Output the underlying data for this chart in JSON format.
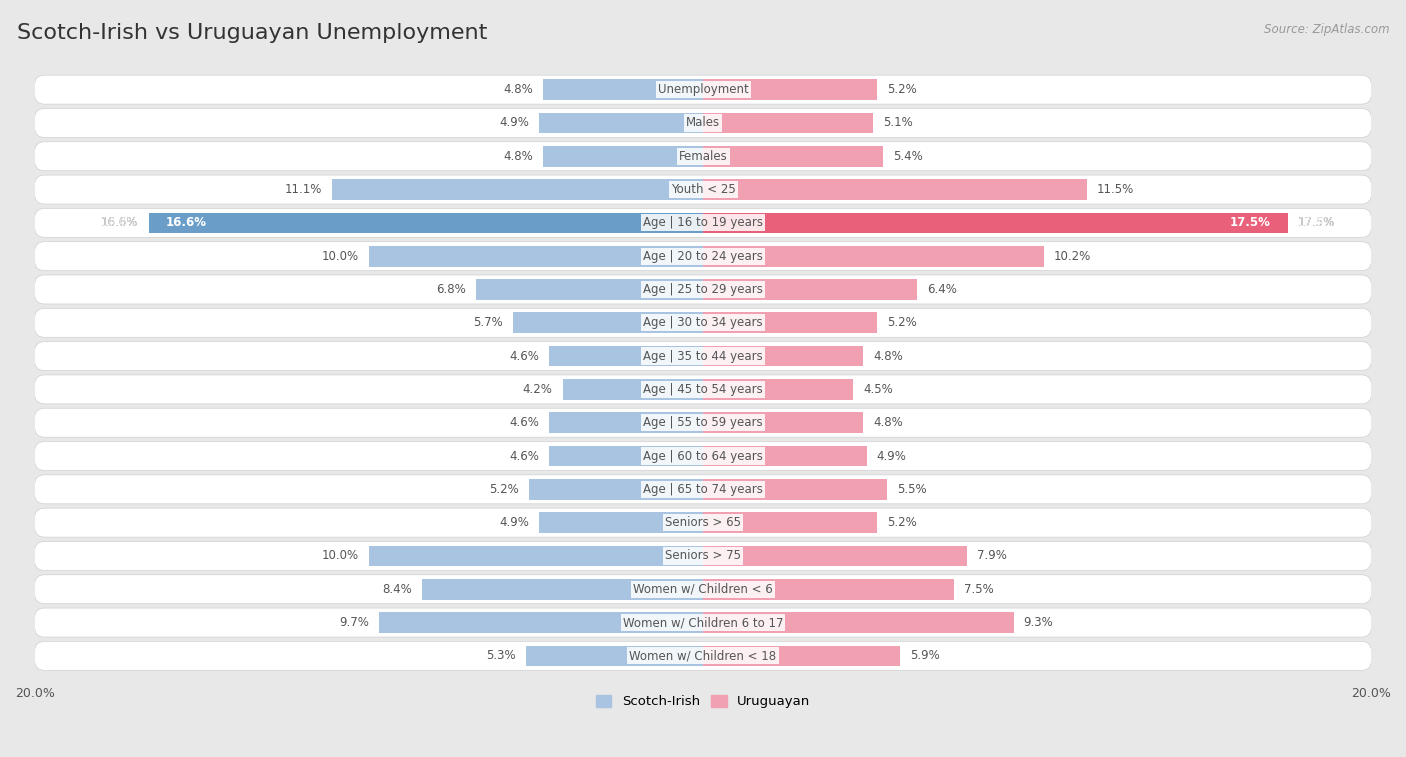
{
  "title": "Scotch-Irish vs Uruguayan Unemployment",
  "source": "Source: ZipAtlas.com",
  "categories": [
    "Unemployment",
    "Males",
    "Females",
    "Youth < 25",
    "Age | 16 to 19 years",
    "Age | 20 to 24 years",
    "Age | 25 to 29 years",
    "Age | 30 to 34 years",
    "Age | 35 to 44 years",
    "Age | 45 to 54 years",
    "Age | 55 to 59 years",
    "Age | 60 to 64 years",
    "Age | 65 to 74 years",
    "Seniors > 65",
    "Seniors > 75",
    "Women w/ Children < 6",
    "Women w/ Children 6 to 17",
    "Women w/ Children < 18"
  ],
  "scotch_irish": [
    4.8,
    4.9,
    4.8,
    11.1,
    16.6,
    10.0,
    6.8,
    5.7,
    4.6,
    4.2,
    4.6,
    4.6,
    5.2,
    4.9,
    10.0,
    8.4,
    9.7,
    5.3
  ],
  "uruguayan": [
    5.2,
    5.1,
    5.4,
    11.5,
    17.5,
    10.2,
    6.4,
    5.2,
    4.8,
    4.5,
    4.8,
    4.9,
    5.5,
    5.2,
    7.9,
    7.5,
    9.3,
    5.9
  ],
  "scotch_irish_color": "#a8c4e0",
  "uruguayan_color": "#f0a0b0",
  "highlight_scotch_color": "#6a9ec8",
  "highlight_uruguayan_color": "#e8607a",
  "background_color": "#e8e8e8",
  "row_bg_color": "#ffffff",
  "row_border_color": "#d0d0d0",
  "max_value": 20.0,
  "title_color": "#333333",
  "label_color": "#555555",
  "value_color": "#555555",
  "title_fontsize": 16,
  "label_fontsize": 8.5,
  "value_fontsize": 8.5
}
